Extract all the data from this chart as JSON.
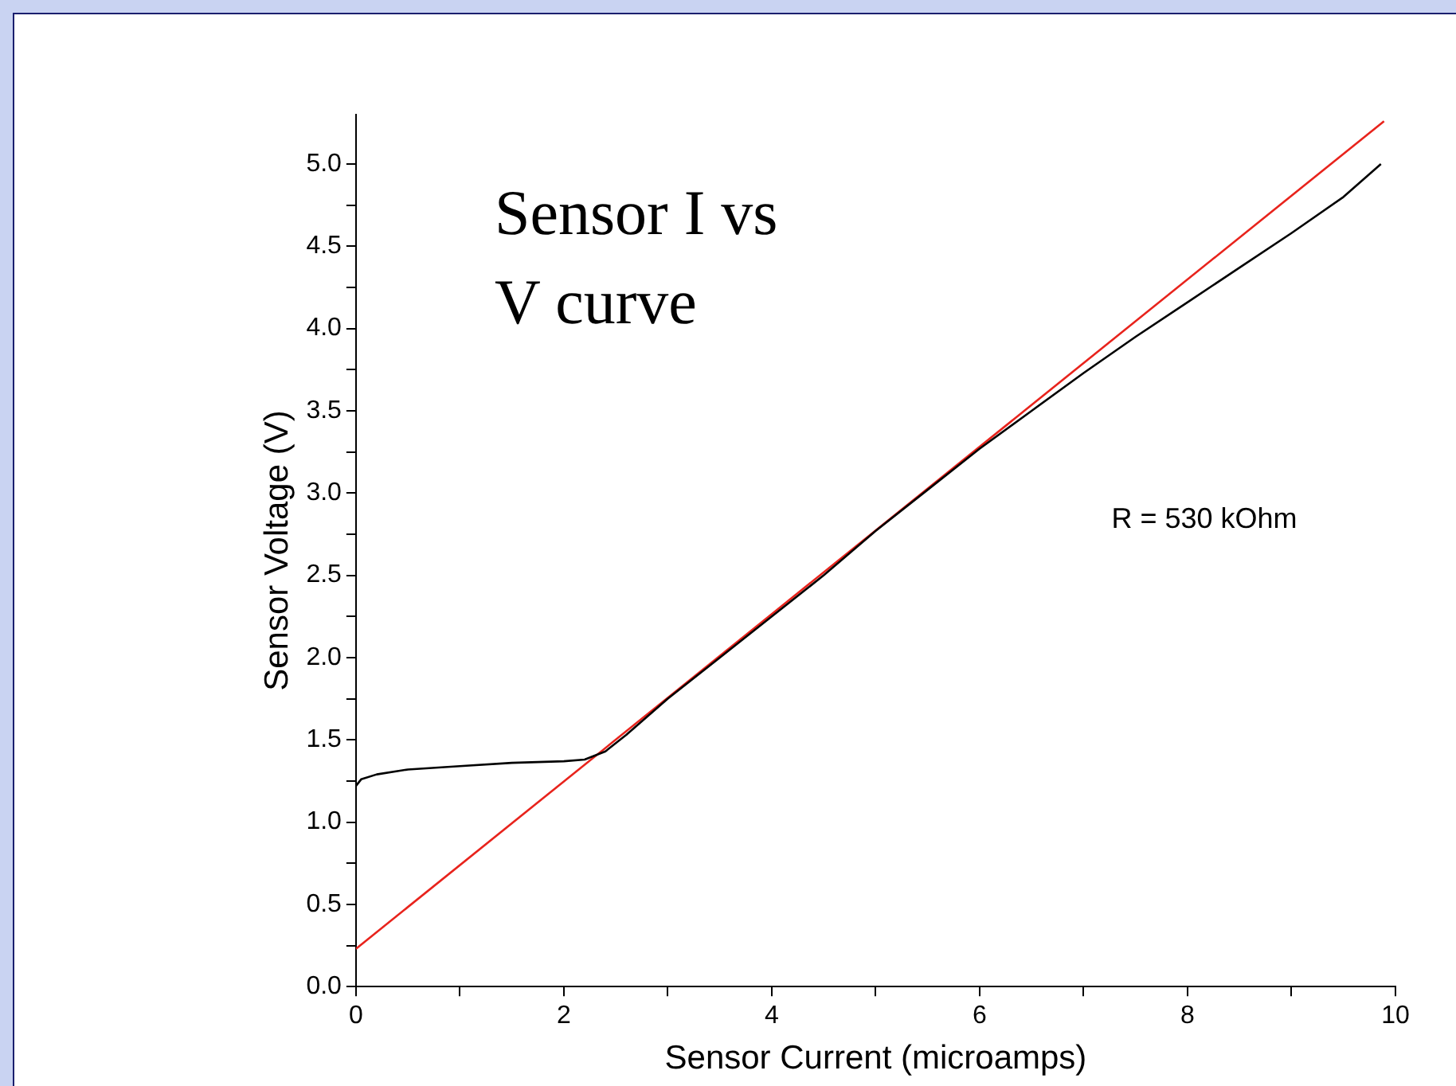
{
  "chart_data": {
    "type": "line",
    "title": "Sensor I vs V curve",
    "xlabel": "Sensor Current (microamps)",
    "ylabel": "Sensor Voltage (V)",
    "annotations": [
      "R = 530 kOhm"
    ],
    "series": [
      {
        "color": "#000000",
        "x": [
          0,
          0.05,
          0.2,
          0.5,
          1,
          1.5,
          2,
          2.2,
          2.4,
          2.6,
          3,
          3.5,
          4,
          4.5,
          5,
          5.5,
          6,
          6.5,
          7,
          7.5,
          8,
          8.5,
          9,
          9.5,
          9.86
        ],
        "values": [
          1.22,
          1.26,
          1.29,
          1.32,
          1.34,
          1.36,
          1.37,
          1.38,
          1.43,
          1.53,
          1.75,
          2.0,
          2.25,
          2.5,
          2.77,
          3.02,
          3.27,
          3.5,
          3.73,
          3.95,
          4.16,
          4.37,
          4.58,
          4.8,
          5.0
        ]
      },
      {
        "color": "#e8231c",
        "x": [
          0,
          9.89
        ],
        "values": [
          0.23,
          5.26
        ]
      }
    ],
    "xlim": [
      0,
      10
    ],
    "ylim": [
      0,
      5.3
    ],
    "xticks": [
      0,
      {
        "value": 1,
        "label": null
      },
      2,
      {
        "value": 3,
        "label": null
      },
      4,
      {
        "value": 5,
        "label": null
      },
      6,
      {
        "value": 7,
        "label": null
      },
      8,
      {
        "value": 9,
        "label": null
      },
      10
    ],
    "yticks": [
      {
        "value": 0,
        "label": "0.0"
      },
      {
        "value": 0.25,
        "label": null
      },
      {
        "value": 0.5,
        "label": "0.5"
      },
      {
        "value": 0.75,
        "label": null
      },
      {
        "value": 1,
        "label": "1.0"
      },
      {
        "value": 1.25,
        "label": null
      },
      {
        "value": 1.5,
        "label": "1.5"
      },
      {
        "value": 1.75,
        "label": null
      },
      {
        "value": 2,
        "label": "2.0"
      },
      {
        "value": 2.25,
        "label": null
      },
      {
        "value": 2.5,
        "label": "2.5"
      },
      {
        "value": 2.75,
        "label": null
      },
      {
        "value": 3,
        "label": "3.0"
      },
      {
        "value": 3.25,
        "label": null
      },
      {
        "value": 3.5,
        "label": "3.5"
      },
      {
        "value": 3.75,
        "label": null
      },
      {
        "value": 4,
        "label": "4.0"
      },
      {
        "value": 4.25,
        "label": null
      },
      {
        "value": 4.5,
        "label": "4.5"
      },
      {
        "value": 4.75,
        "label": null
      },
      {
        "value": 5,
        "label": "5.0"
      }
    ],
    "grid": false,
    "legend": false,
    "marker": "none",
    "line_style": "solid"
  }
}
